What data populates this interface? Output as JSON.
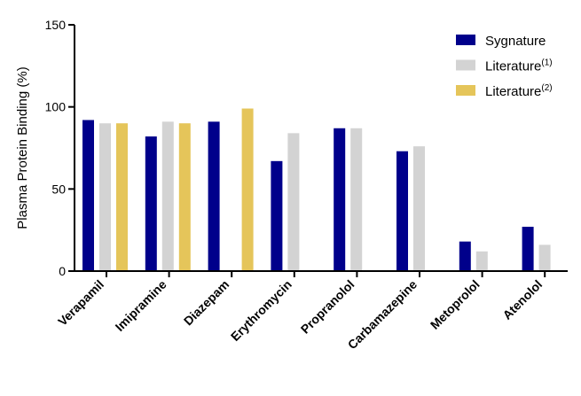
{
  "chart_data": {
    "type": "bar",
    "ylabel": "Plasma Protein Binding (%)",
    "ylim": [
      0,
      150
    ],
    "yticks": [
      0,
      50,
      100,
      150
    ],
    "categories": [
      "Verapamil",
      "Imipramine",
      "Diazepam",
      "Erythromycin",
      "Propranolol",
      "Carbamazepine",
      "Metoprolol",
      "Atenolol"
    ],
    "series": [
      {
        "name": "Sygnature",
        "name_sup": "",
        "color": "#00008B",
        "values": [
          92,
          82,
          91,
          67,
          87,
          73,
          18,
          27
        ]
      },
      {
        "name": "Literature",
        "name_sup": "(1)",
        "color": "#D3D3D3",
        "values": [
          90,
          91,
          null,
          84,
          87,
          76,
          12,
          16
        ]
      },
      {
        "name": "Literature",
        "name_sup": "(2)",
        "color": "#E5C55A",
        "values": [
          90,
          90,
          99,
          null,
          null,
          null,
          null,
          null
        ]
      }
    ],
    "legend_position": "top-right",
    "grid": false
  }
}
